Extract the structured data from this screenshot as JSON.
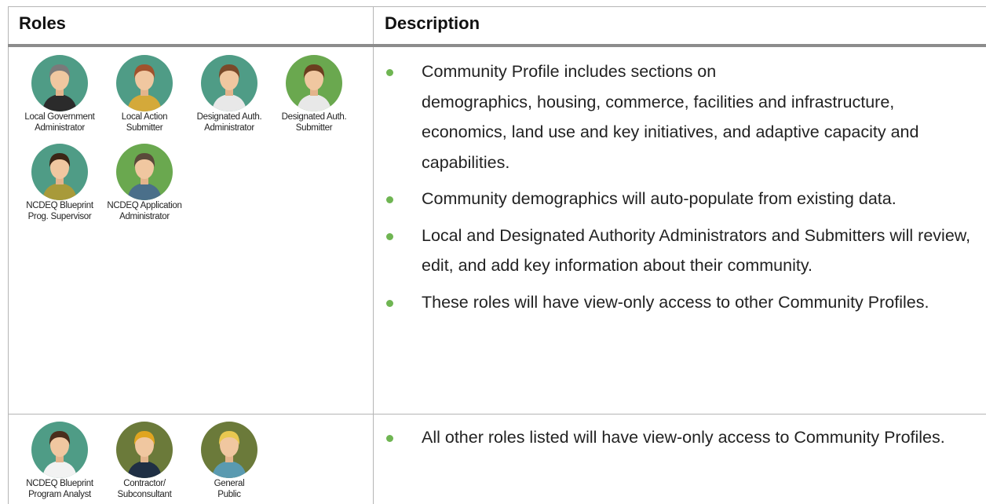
{
  "header": {
    "roles": "Roles",
    "description": "Description"
  },
  "rows": [
    {
      "roles": [
        "Local Government\nAdministrator",
        "Local Action\nSubmitter",
        "Designated Auth.\nAdministrator",
        "Designated Auth.\nSubmitter",
        "NCDEQ Blueprint\nProg. Supervisor",
        "NCDEQ Application\nAdministrator"
      ],
      "bullets": [
        "Community Profile includes sections on\ndemographics, housing, commerce, facilities and infrastructure, economics, land use and key initiatives, and adaptive capacity and capabilities.",
        "Community demographics will auto-populate from existing data.",
        "Local and Designated Authority Administrators and Submitters will review, edit, and add key information about their community.",
        "These roles will have view-only access to other Community Profiles."
      ]
    },
    {
      "roles": [
        "NCDEQ Blueprint\nProgram Analyst",
        "Contractor/\nSubconsultant",
        "General\nPublic"
      ],
      "bullets": [
        "All other roles listed will have view-only access to Community Profiles."
      ]
    }
  ]
}
